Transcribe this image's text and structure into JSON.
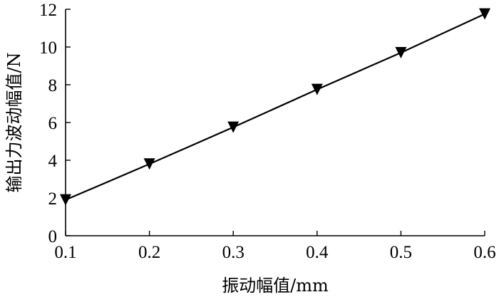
{
  "chart_data": {
    "type": "line",
    "title": "",
    "xlabel": "振动幅值/mm",
    "ylabel": "输出力波动幅值/N",
    "xlim": [
      0.1,
      0.6
    ],
    "ylim": [
      0,
      12
    ],
    "x_ticks": [
      "0.1",
      "0.2",
      "0.3",
      "0.4",
      "0.5",
      "0.6"
    ],
    "y_ticks": [
      "0",
      "2",
      "4",
      "6",
      "8",
      "10",
      "12"
    ],
    "grid": false,
    "legend": "none",
    "series": [
      {
        "marker": "triangle-down",
        "color": "#000000",
        "x": [
          0.1,
          0.2,
          0.3,
          0.4,
          0.5,
          0.6
        ],
        "y": [
          1.9,
          3.8,
          5.75,
          7.75,
          9.7,
          11.75
        ]
      }
    ]
  }
}
